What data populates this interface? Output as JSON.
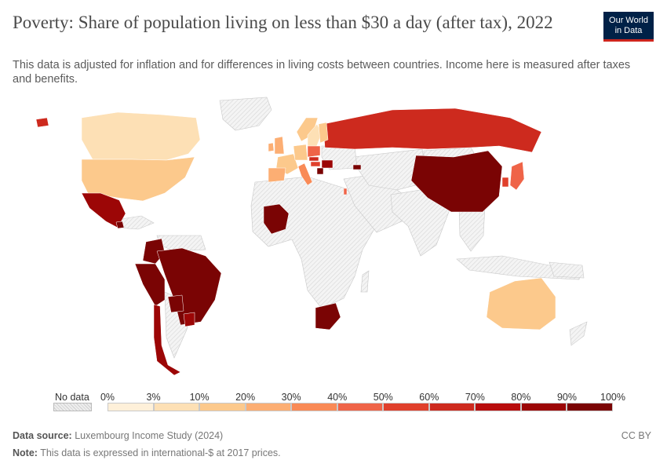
{
  "header": {
    "title": "Poverty: Share of population living on less than $30 a day (after tax), 2022",
    "subtitle": "This data is adjusted for inflation and for differences in living costs between countries. Income here is measured after taxes and benefits."
  },
  "logo": {
    "line1": "Our World",
    "line2": "in Data",
    "bg": "#002147",
    "accent": "#ce261e"
  },
  "legend": {
    "no_data_label": "No data",
    "ticks": [
      "0%",
      "3%",
      "10%",
      "20%",
      "30%",
      "40%",
      "50%",
      "60%",
      "70%",
      "80%",
      "90%",
      "100%"
    ],
    "colors": [
      "#fef0d9",
      "#fde0b5",
      "#fcc98c",
      "#fcae73",
      "#f98a56",
      "#ef6448",
      "#e0402c",
      "#cd2a1e",
      "#b80d0d",
      "#9c0606",
      "#7a0404"
    ]
  },
  "map_data": {
    "metric": "Share of population living on less than $30 a day (after tax)",
    "year": "2022",
    "countries": [
      {
        "name": "Canada",
        "bin": 1
      },
      {
        "name": "United States",
        "bin": 2
      },
      {
        "name": "Mexico",
        "bin": 9
      },
      {
        "name": "Guatemala",
        "bin": 10
      },
      {
        "name": "Colombia",
        "bin": 10
      },
      {
        "name": "Peru",
        "bin": 10
      },
      {
        "name": "Brazil",
        "bin": 10
      },
      {
        "name": "Paraguay",
        "bin": 10
      },
      {
        "name": "Uruguay",
        "bin": 9
      },
      {
        "name": "Chile",
        "bin": 9
      },
      {
        "name": "Mali",
        "bin": 10
      },
      {
        "name": "South Africa",
        "bin": 10
      },
      {
        "name": "Russia",
        "bin": 7
      },
      {
        "name": "China",
        "bin": 10
      },
      {
        "name": "Japan",
        "bin": 5
      },
      {
        "name": "South Korea",
        "bin": 6
      },
      {
        "name": "Australia",
        "bin": 2
      },
      {
        "name": "Iceland",
        "bin": 7
      },
      {
        "name": "Ireland",
        "bin": 3
      },
      {
        "name": "United Kingdom",
        "bin": 3
      },
      {
        "name": "Norway",
        "bin": 2
      },
      {
        "name": "Sweden",
        "bin": 1
      },
      {
        "name": "Finland",
        "bin": 2
      },
      {
        "name": "France",
        "bin": 2
      },
      {
        "name": "Spain",
        "bin": 3
      },
      {
        "name": "Germany",
        "bin": 2
      },
      {
        "name": "Italy",
        "bin": 4
      },
      {
        "name": "Poland",
        "bin": 5
      },
      {
        "name": "Slovakia",
        "bin": 7
      },
      {
        "name": "Hungary",
        "bin": 6
      },
      {
        "name": "Romania",
        "bin": 9
      },
      {
        "name": "Serbia",
        "bin": 10
      },
      {
        "name": "Georgia",
        "bin": 10
      },
      {
        "name": "Israel",
        "bin": 5
      }
    ]
  },
  "footer": {
    "source_label": "Data source:",
    "source_text": "Luxembourg Income Study (2024)",
    "note_label": "Note:",
    "note_text": "This data is expressed in international-$ at 2017 prices.",
    "license": "CC BY"
  }
}
